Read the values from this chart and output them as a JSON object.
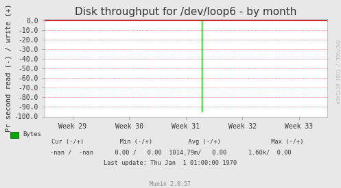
{
  "title": "Disk throughput for /dev/loop6 - by month",
  "ylabel": "Pr second read (-) / write (+)",
  "ylim": [
    -100.0,
    2.0
  ],
  "yticks": [
    0.0,
    -10.0,
    -20.0,
    -30.0,
    -40.0,
    -50.0,
    -60.0,
    -70.0,
    -80.0,
    -90.0,
    -100.0
  ],
  "xtick_labels": [
    "Week 29",
    "Week 30",
    "Week 31",
    "Week 32",
    "Week 33"
  ],
  "xtick_positions": [
    0.1,
    0.3,
    0.5,
    0.7,
    0.9
  ],
  "bg_color": "#e8e8e8",
  "plot_bg_color": "#ffffff",
  "grid_color": "#ff9999",
  "top_line_color": "#cc0000",
  "green_line_x": 0.555,
  "green_line_color": "#00cc00",
  "legend_label": "Bytes",
  "legend_color": "#00aa00",
  "footer_line1": "    Cur (-/+)          Min (-/+)          Avg (-/+)              Max (-/+)",
  "footer_line2": "-nan /  -nan      0.00 /   0.00  1014.79m/   0.00      1.60k/  0.00",
  "footer_line3": "Last update: Thu Jan  1 01:00:00 1970",
  "footer_munin": "Munin 2.0.57",
  "watermark": "RRDTOOL / TOBI OETIKER",
  "title_fontsize": 11,
  "axis_fontsize": 7.5,
  "tick_fontsize": 7,
  "footer_fontsize": 6.5
}
